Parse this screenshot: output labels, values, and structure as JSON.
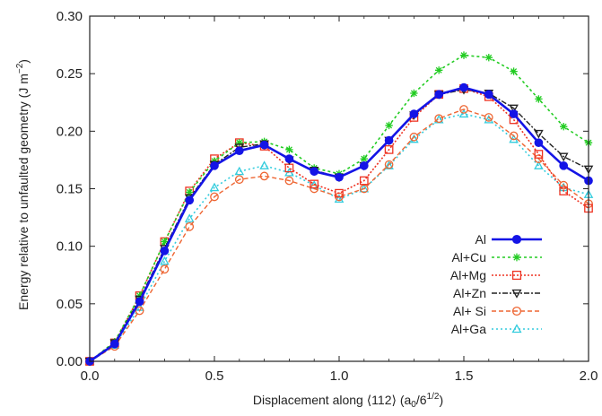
{
  "chart_data": {
    "type": "line",
    "xlabel": "Displacement along ⟨112⟩ (a",
    "xlabel_sub": "0",
    "xlabel_tail": "/6",
    "xlabel_sup": "1/2",
    "xlabel_end": ")",
    "ylabel": "Energy relative to unfaulted geometry (J m",
    "ylabel_sup": "−2",
    "ylabel_end": ")",
    "xlim": [
      0.0,
      2.0
    ],
    "ylim": [
      0.0,
      0.3
    ],
    "x_ticks": [
      "0.0",
      "0.5",
      "1.0",
      "1.5",
      "2.0"
    ],
    "y_ticks": [
      "0.00",
      "0.05",
      "0.10",
      "0.15",
      "0.20",
      "0.25",
      "0.30"
    ],
    "legend_position": "right-lower",
    "x": [
      0.0,
      0.1,
      0.2,
      0.3,
      0.4,
      0.5,
      0.6,
      0.7,
      0.8,
      0.9,
      1.0,
      1.1,
      1.2,
      1.3,
      1.4,
      1.5,
      1.6,
      1.7,
      1.8,
      1.9,
      2.0
    ],
    "series": [
      {
        "name": "Al",
        "color": "#1414e6",
        "marker": "circle-filled",
        "dash": "",
        "width": 2.6,
        "values": [
          0.0,
          0.015,
          0.052,
          0.096,
          0.14,
          0.17,
          0.183,
          0.188,
          0.176,
          0.165,
          0.16,
          0.17,
          0.192,
          0.215,
          0.232,
          0.238,
          0.232,
          0.215,
          0.19,
          0.17,
          0.157
        ]
      },
      {
        "name": "Al+Cu",
        "color": "#22cc22",
        "marker": "star",
        "dash": "3,3",
        "width": 1.6,
        "values": [
          0.0,
          0.017,
          0.057,
          0.104,
          0.147,
          0.174,
          0.19,
          0.191,
          0.184,
          0.168,
          0.163,
          0.176,
          0.205,
          0.233,
          0.253,
          0.266,
          0.264,
          0.252,
          0.228,
          0.204,
          0.19
        ]
      },
      {
        "name": "Al+Mg",
        "color": "#ee3322",
        "marker": "square-open",
        "dash": "2,2",
        "width": 1.6,
        "values": [
          0.0,
          0.016,
          0.057,
          0.104,
          0.148,
          0.176,
          0.19,
          0.187,
          0.168,
          0.154,
          0.146,
          0.157,
          0.184,
          0.212,
          0.232,
          0.237,
          0.23,
          0.21,
          0.18,
          0.148,
          0.133
        ]
      },
      {
        "name": "Al+Zn",
        "color": "#222222",
        "marker": "triangle-down-open",
        "dash": "6,2,2,2",
        "width": 1.4,
        "values": [
          0.0,
          0.016,
          0.054,
          0.098,
          0.142,
          0.171,
          0.186,
          0.189,
          0.175,
          0.166,
          0.16,
          0.17,
          0.192,
          0.214,
          0.232,
          0.236,
          0.233,
          0.22,
          0.198,
          0.178,
          0.167
        ]
      },
      {
        "name": "Al+ Si",
        "color": "#ee6633",
        "marker": "circle-open",
        "dash": "5,3",
        "width": 1.4,
        "values": [
          0.0,
          0.013,
          0.044,
          0.08,
          0.117,
          0.143,
          0.158,
          0.161,
          0.157,
          0.15,
          0.143,
          0.15,
          0.171,
          0.195,
          0.211,
          0.219,
          0.212,
          0.196,
          0.176,
          0.153,
          0.137
        ]
      },
      {
        "name": "Al+Ga",
        "color": "#33ccdd",
        "marker": "triangle-up-open",
        "dash": "2,3",
        "width": 1.6,
        "values": [
          0.0,
          0.014,
          0.047,
          0.087,
          0.124,
          0.151,
          0.165,
          0.17,
          0.164,
          0.153,
          0.141,
          0.15,
          0.17,
          0.193,
          0.21,
          0.215,
          0.21,
          0.193,
          0.17,
          0.151,
          0.145
        ]
      }
    ]
  }
}
